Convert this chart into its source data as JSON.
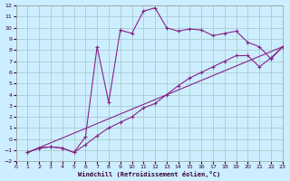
{
  "bg_color": "#cceeff",
  "grid_color": "#aacccc",
  "line_color": "#882288",
  "xlabel": "Windchill (Refroidissement éolien,°C)",
  "xlim": [
    0,
    23
  ],
  "ylim": [
    -2,
    12
  ],
  "xticks": [
    0,
    1,
    2,
    3,
    4,
    5,
    6,
    7,
    8,
    9,
    10,
    11,
    12,
    13,
    14,
    15,
    16,
    17,
    18,
    19,
    20,
    21,
    22,
    23
  ],
  "yticks": [
    -2,
    -1,
    0,
    1,
    2,
    3,
    4,
    5,
    6,
    7,
    8,
    9,
    10,
    11,
    12
  ],
  "line1_x": [
    1,
    2,
    3,
    4,
    5,
    6,
    7,
    8,
    9,
    10,
    11,
    12,
    13,
    14,
    15,
    16,
    17,
    18,
    19,
    20,
    21,
    22,
    23
  ],
  "line1_y": [
    -1.2,
    -0.8,
    -0.7,
    -0.8,
    -1.2,
    0.2,
    8.3,
    3.3,
    9.8,
    9.5,
    11.5,
    11.8,
    10.0,
    9.7,
    9.9,
    9.8,
    9.3,
    9.5,
    9.7,
    8.7,
    8.3,
    7.2,
    8.3
  ],
  "line2_x": [
    1,
    2,
    3,
    4,
    5,
    6,
    7,
    8,
    9,
    10,
    11,
    12,
    13,
    14,
    15,
    16,
    17,
    18,
    19,
    20,
    21,
    22,
    23
  ],
  "line2_y": [
    -1.2,
    -0.8,
    -0.7,
    -0.8,
    -1.2,
    -0.5,
    0.3,
    1.0,
    1.5,
    2.0,
    2.8,
    3.2,
    4.0,
    4.8,
    5.5,
    6.0,
    6.5,
    7.0,
    7.5,
    7.5,
    6.5,
    7.3,
    8.3
  ],
  "line3_x": [
    1,
    23
  ],
  "line3_y": [
    -1.2,
    8.3
  ]
}
